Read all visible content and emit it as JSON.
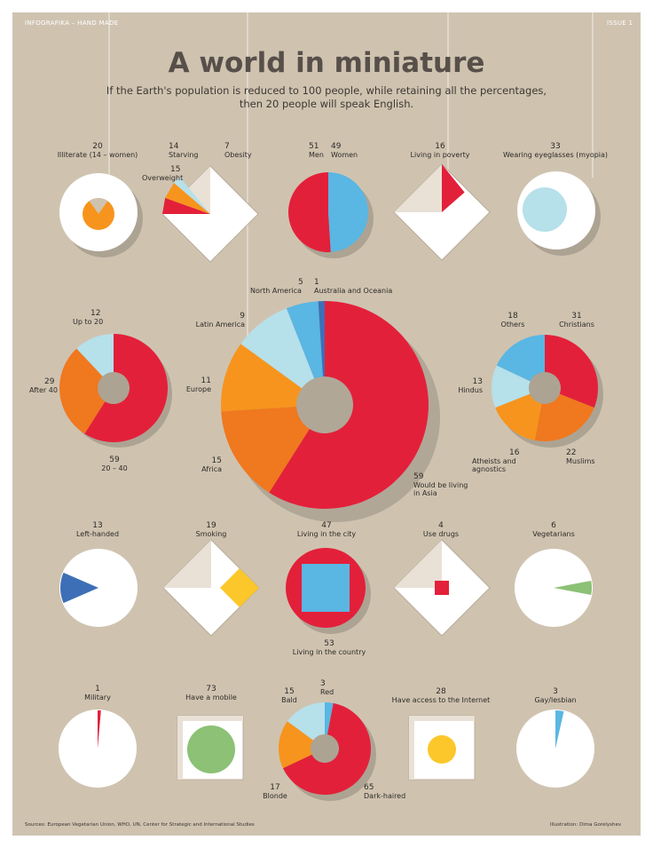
{
  "header": {
    "left": "INFOGRAFIKA – HAND MADE",
    "right": "ISSUE 1"
  },
  "title": "A world in miniature",
  "subtitle": [
    "If the Earth's population is reduced to 100 people, while retaining all the percentages,",
    "then 20 people will speak English."
  ],
  "colors": {
    "board": "#cfc3b0",
    "red": "#e3203a",
    "orange": "#f0781e",
    "light_orange": "#f7941d",
    "light_blue": "#b6e0ea",
    "blue": "#5ab6e2",
    "yellow": "#fbc72a",
    "green": "#8cc176",
    "dark_blue": "#3d6fb6",
    "white": "#ffffff"
  },
  "charts": {
    "illiterate": {
      "value": "20",
      "label": "Illiterate (14 – women)"
    },
    "starving": {
      "value": "14",
      "label": "Starving"
    },
    "obesity": {
      "value": "7",
      "label": "Obesity"
    },
    "overweight": {
      "value": "15",
      "label": "Overweight"
    },
    "men": {
      "value": "51",
      "label": "Men"
    },
    "women": {
      "value": "49",
      "label": "Women"
    },
    "poverty": {
      "value": "16",
      "label": "Living in poverty"
    },
    "myopia": {
      "value": "33",
      "label": "Wearing eyeglasses (myopia)"
    },
    "north_america": {
      "value": "5",
      "label": "North America"
    },
    "oceania": {
      "value": "1",
      "label": "Australia and Oceania"
    },
    "latin_america": {
      "value": "9",
      "label": "Latin America"
    },
    "europe": {
      "value": "11",
      "label": "Europe"
    },
    "africa": {
      "value": "15",
      "label": "Africa"
    },
    "asia": {
      "value": "59",
      "label": "Would be living in Asia"
    },
    "age_up20": {
      "value": "12",
      "label": "Up to 20"
    },
    "age_after40": {
      "value": "29",
      "label": "After 40"
    },
    "age_20_40": {
      "value": "59",
      "label": "20 – 40"
    },
    "others": {
      "value": "18",
      "label": "Others"
    },
    "christians": {
      "value": "31",
      "label": "Christians"
    },
    "hindus": {
      "value": "13",
      "label": "Hindus"
    },
    "atheists": {
      "value": "16",
      "label": "Atheists and agnostics"
    },
    "muslims": {
      "value": "22",
      "label": "Muslims"
    },
    "left_handed": {
      "value": "13",
      "label": "Left-handed"
    },
    "smoking": {
      "value": "19",
      "label": "Smoking"
    },
    "city": {
      "value": "47",
      "label": "Living in the city"
    },
    "country": {
      "value": "53",
      "label": "Living in the country"
    },
    "drugs": {
      "value": "4",
      "label": "Use drugs"
    },
    "vegetarians": {
      "value": "6",
      "label": "Vegetarians"
    },
    "military": {
      "value": "1",
      "label": "Military"
    },
    "mobile": {
      "value": "73",
      "label": "Have a mobile"
    },
    "bald": {
      "value": "15",
      "label": "Bald"
    },
    "red_hair": {
      "value": "3",
      "label": "Red"
    },
    "blonde": {
      "value": "17",
      "label": "Blonde"
    },
    "dark_haired": {
      "value": "65",
      "label": "Dark-haired"
    },
    "internet": {
      "value": "28",
      "label": "Have access to the Internet"
    },
    "gay": {
      "value": "3",
      "label": "Gay/lesbian"
    }
  },
  "footer": {
    "sources": "Sources: European Vegetarian Union, WHO, UN, Center for Strategic and International Studies",
    "credit": "Illustration: Dima Gorelyshev"
  }
}
